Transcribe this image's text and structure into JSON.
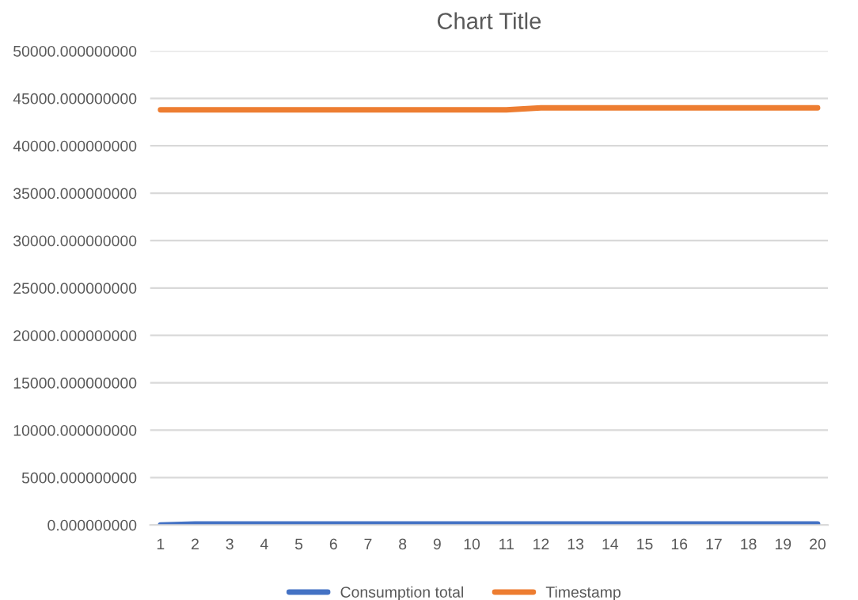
{
  "chart_data": {
    "type": "line",
    "title": "Chart Title",
    "categories": [
      "1",
      "2",
      "3",
      "4",
      "5",
      "6",
      "7",
      "8",
      "9",
      "10",
      "11",
      "12",
      "13",
      "14",
      "15",
      "16",
      "17",
      "18",
      "19",
      "20"
    ],
    "series": [
      {
        "name": "Consumption total",
        "color": "#4472c4",
        "values": [
          0,
          100,
          100,
          100,
          100,
          100,
          100,
          100,
          100,
          100,
          100,
          100,
          100,
          100,
          100,
          100,
          100,
          100,
          100,
          100
        ]
      },
      {
        "name": "Timestamp",
        "color": "#ed7d31",
        "values": [
          43800,
          43800,
          43800,
          43800,
          43800,
          43800,
          43800,
          43800,
          43800,
          43800,
          43800,
          44000,
          44000,
          44000,
          44000,
          44000,
          44000,
          44000,
          44000,
          44000
        ]
      }
    ],
    "ylim": [
      0,
      50000
    ],
    "yticks": [
      {
        "value": 0,
        "label": "0.000000000"
      },
      {
        "value": 5000,
        "label": "5000.000000000"
      },
      {
        "value": 10000,
        "label": "10000.000000000"
      },
      {
        "value": 15000,
        "label": "15000.000000000"
      },
      {
        "value": 20000,
        "label": "20000.000000000"
      },
      {
        "value": 25000,
        "label": "25000.000000000"
      },
      {
        "value": 30000,
        "label": "30000.000000000"
      },
      {
        "value": 35000,
        "label": "35000.000000000"
      },
      {
        "value": 40000,
        "label": "40000.000000000"
      },
      {
        "value": 45000,
        "label": "45000.000000000"
      },
      {
        "value": 50000,
        "label": "50000.000000000"
      }
    ],
    "grid": "y",
    "legend": "bottom",
    "marker": "none",
    "line_style": "solid"
  }
}
